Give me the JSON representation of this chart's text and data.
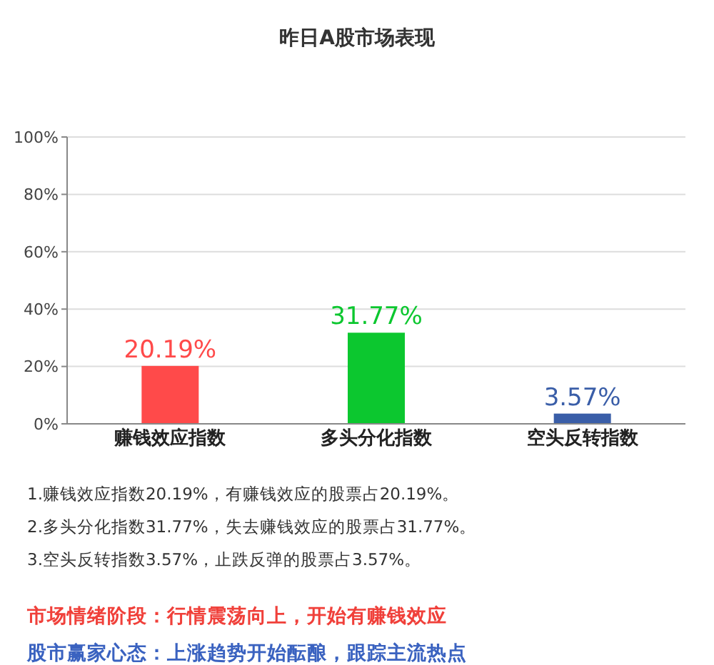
{
  "chart_data": {
    "type": "bar",
    "title": "昨日A股市场表现",
    "categories": [
      "赚钱效应指数",
      "多头分化指数",
      "空头反转指数"
    ],
    "values": [
      20.19,
      31.77,
      3.57
    ],
    "colors": [
      "#ff4a4a",
      "#0cc72f",
      "#3a5ea8"
    ],
    "value_labels": [
      "20.19%",
      "31.77%",
      "3.57%"
    ],
    "ylim": [
      0,
      100
    ],
    "yticks": [
      {
        "value": 0,
        "label": "0%"
      },
      {
        "value": 20,
        "label": "20%"
      },
      {
        "value": 40,
        "label": "40%"
      },
      {
        "value": 60,
        "label": "60%"
      },
      {
        "value": 80,
        "label": "80%"
      },
      {
        "value": 100,
        "label": "100%"
      }
    ],
    "grid": "y",
    "annotations": [
      "1.赚钱效应指数20.19%，有赚钱效应的股票占20.19%。",
      "2.多头分化指数31.77%，失去赚钱效应的股票占31.77%。",
      "3.空头反转指数3.57%，止跌反弹的股票占3.57%。",
      "市场情绪阶段：行情震荡向上，开始有赚钱效应",
      "股市赢家心态：上涨趋势开始酝酿，跟踪主流热点"
    ]
  }
}
